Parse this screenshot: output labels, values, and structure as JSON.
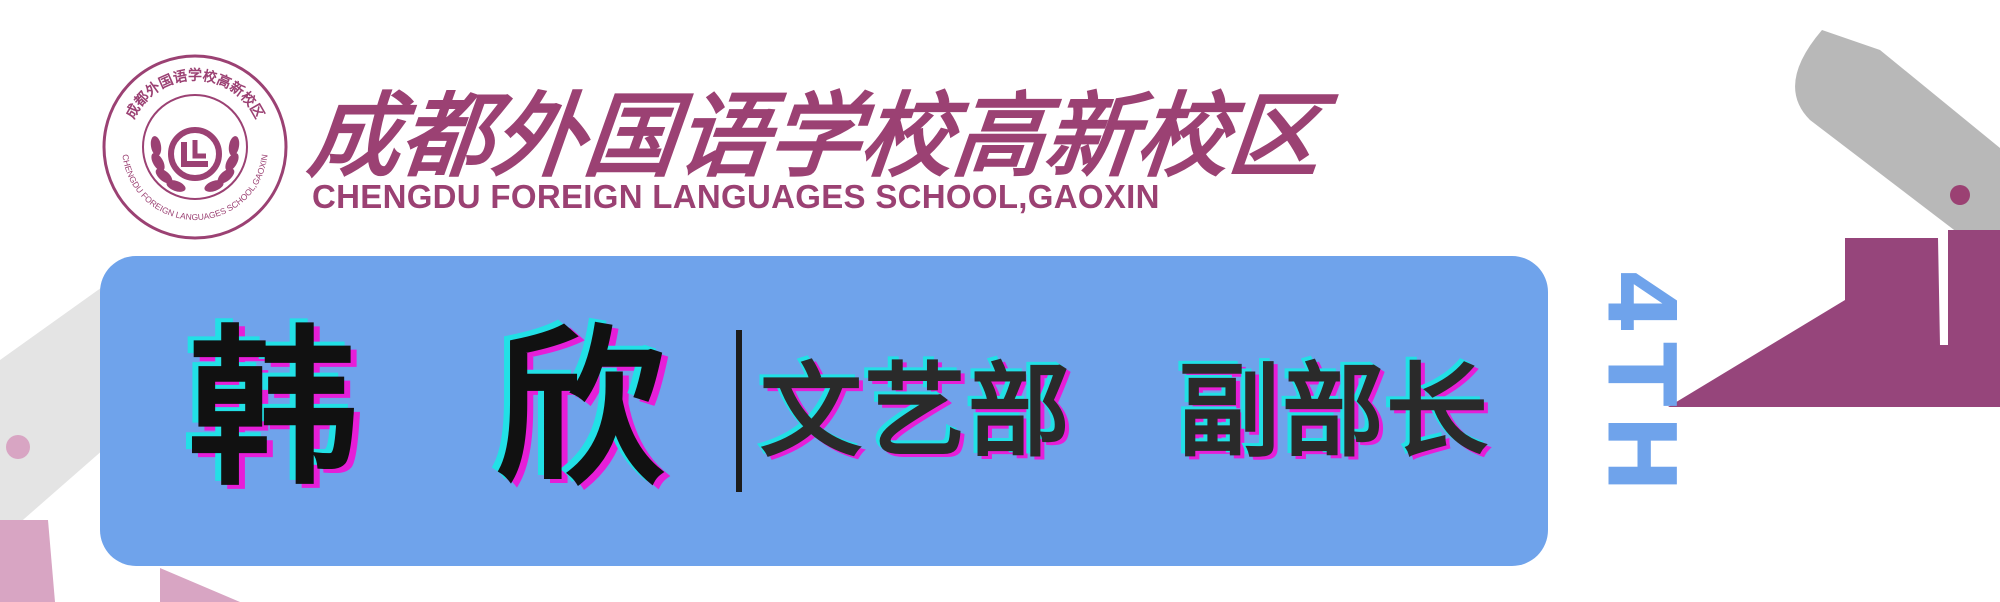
{
  "school": {
    "name_cn": "成都外国语学校高新校区",
    "name_en": "CHENGDU FOREIGN LANGUAGES SCHOOL,GAOXIN",
    "seal_ring_text": "成都外国语学校高新校区",
    "seal_ring_en": "CHENGDU FOREIGN LANGUAGES SCHOOL,GAOXIN"
  },
  "person": {
    "name_char_1": "韩",
    "name_char_2": "欣",
    "department": "文艺部",
    "role": "副部长"
  },
  "edition_label": "4TH",
  "colors": {
    "brand": "#9b4173",
    "banner": "#6fa3eb",
    "text_dark": "#1c1c1c",
    "offset_cyan": "#22e0e6",
    "offset_magenta": "#e61ed8",
    "deco_gray": "#b8b8b8",
    "deco_light_gray": "#e4e4e4",
    "deco_pink": "#d8a5c3"
  }
}
